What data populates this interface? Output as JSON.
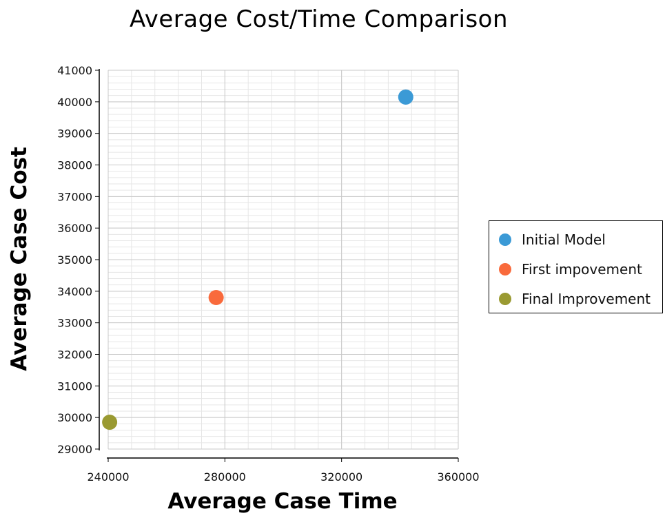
{
  "chart_data": {
    "type": "scatter",
    "title": "Average Cost/Time Comparison",
    "xlabel": "Average Case Time",
    "ylabel": "Average Case Cost",
    "xlim": [
      240000,
      360000
    ],
    "ylim": [
      29000,
      41000
    ],
    "x_ticks": [
      240000,
      280000,
      320000,
      360000
    ],
    "y_ticks": [
      29000,
      30000,
      31000,
      32000,
      33000,
      34000,
      35000,
      36000,
      37000,
      38000,
      39000,
      40000,
      41000
    ],
    "grid": true,
    "legend_position": "right",
    "series": [
      {
        "name": "Initial Model",
        "color": "#3b9ad6",
        "points": [
          {
            "x": 342000,
            "y": 40150
          }
        ]
      },
      {
        "name": "First impovement",
        "color": "#f96a3c",
        "points": [
          {
            "x": 277000,
            "y": 33800
          }
        ]
      },
      {
        "name": "Final Improvement",
        "color": "#9a9a32",
        "points": [
          {
            "x": 240500,
            "y": 29850
          }
        ]
      }
    ]
  }
}
